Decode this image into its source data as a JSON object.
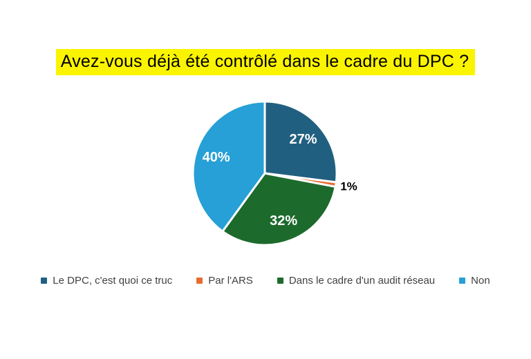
{
  "title": {
    "text": "Avez-vous déjà été contrôlé dans le cadre du DPC ?",
    "highlight_color": "#FBF400",
    "text_color": "#000000"
  },
  "chart_data": {
    "type": "pie",
    "title": "Avez-vous déjà été contrôlé dans le cadre du DPC ?",
    "start_angle_deg": 0,
    "direction": "clockwise",
    "legend_position": "bottom",
    "inside_label_color": "#FFFFFF",
    "outside_label_color": "#000000",
    "slice_gap_color": "#FFFFFF",
    "slices": [
      {
        "label": "Le DPC, c'est quoi ce truc",
        "value": 27,
        "display": "27%",
        "color": "#215F80",
        "label_inside": true
      },
      {
        "label": "Par l'ARS",
        "value": 1,
        "display": "1%",
        "color": "#E66C30",
        "label_inside": false
      },
      {
        "label": "Dans le cadre d'un audit réseau",
        "value": 32,
        "display": "32%",
        "color": "#1D6A2D",
        "label_inside": true
      },
      {
        "label": "Non",
        "value": 40,
        "display": "40%",
        "color": "#26A0D6",
        "label_inside": true
      }
    ]
  }
}
